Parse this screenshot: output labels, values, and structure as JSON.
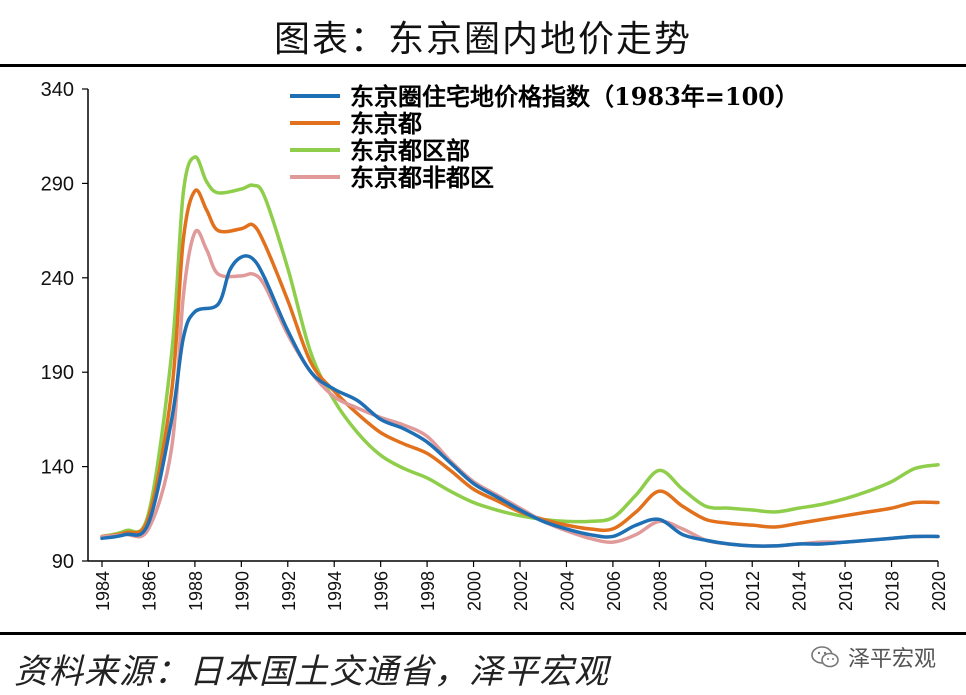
{
  "title": "图表：东京圈内地价走势",
  "source": "资料来源：日本国土交通省，泽平宏观",
  "watermark": {
    "text": "泽平宏观",
    "icon": "wechat-icon"
  },
  "chart_data": {
    "type": "line",
    "title": "图表：东京圈内地价走势",
    "xlabel": "",
    "ylabel": "",
    "ylim": [
      90,
      340
    ],
    "yticks": [
      90,
      140,
      190,
      240,
      290,
      340
    ],
    "xlim": [
      1984,
      2020
    ],
    "xticks": [
      1984,
      1986,
      1988,
      1990,
      1992,
      1994,
      1996,
      1998,
      2000,
      2002,
      2004,
      2006,
      2008,
      2010,
      2012,
      2014,
      2016,
      2018,
      2020
    ],
    "grid": false,
    "legend_position": "top-center",
    "series": [
      {
        "name": "东京圈住宅地价格指数（1983年=100）",
        "color": "#1f6fb5",
        "points": [
          [
            1984,
            102
          ],
          [
            1985,
            104
          ],
          [
            1986,
            110
          ],
          [
            1987,
            165
          ],
          [
            1987.5,
            208
          ],
          [
            1988,
            222
          ],
          [
            1989,
            226
          ],
          [
            1989.5,
            244
          ],
          [
            1990,
            251
          ],
          [
            1990.5,
            250
          ],
          [
            1991,
            240
          ],
          [
            1992,
            212
          ],
          [
            1993,
            190
          ],
          [
            1994,
            181
          ],
          [
            1995,
            175
          ],
          [
            1996,
            165
          ],
          [
            1997,
            160
          ],
          [
            1998,
            153
          ],
          [
            1999,
            142
          ],
          [
            2000,
            131
          ],
          [
            2001,
            124
          ],
          [
            2002,
            117
          ],
          [
            2003,
            111
          ],
          [
            2004,
            107
          ],
          [
            2005,
            104
          ],
          [
            2006,
            103
          ],
          [
            2007,
            109
          ],
          [
            2008,
            112
          ],
          [
            2009,
            104
          ],
          [
            2010,
            101
          ],
          [
            2011,
            99
          ],
          [
            2012,
            98
          ],
          [
            2013,
            98
          ],
          [
            2014,
            99
          ],
          [
            2015,
            99
          ],
          [
            2016,
            100
          ],
          [
            2017,
            101
          ],
          [
            2018,
            102
          ],
          [
            2019,
            103
          ],
          [
            2020,
            103
          ]
        ]
      },
      {
        "name": "东京都",
        "color": "#e2711d",
        "points": [
          [
            1984,
            103
          ],
          [
            1985,
            105
          ],
          [
            1986,
            113
          ],
          [
            1987,
            180
          ],
          [
            1987.5,
            260
          ],
          [
            1988,
            286
          ],
          [
            1988.5,
            276
          ],
          [
            1989,
            265
          ],
          [
            1990,
            266
          ],
          [
            1990.5,
            268
          ],
          [
            1991,
            258
          ],
          [
            1992,
            228
          ],
          [
            1993,
            195
          ],
          [
            1994,
            180
          ],
          [
            1995,
            168
          ],
          [
            1996,
            158
          ],
          [
            1997,
            152
          ],
          [
            1998,
            147
          ],
          [
            1999,
            138
          ],
          [
            2000,
            128
          ],
          [
            2001,
            122
          ],
          [
            2002,
            116
          ],
          [
            2003,
            112
          ],
          [
            2004,
            109
          ],
          [
            2005,
            107
          ],
          [
            2006,
            107
          ],
          [
            2007,
            116
          ],
          [
            2008,
            127
          ],
          [
            2009,
            119
          ],
          [
            2010,
            112
          ],
          [
            2011,
            110
          ],
          [
            2012,
            109
          ],
          [
            2013,
            108
          ],
          [
            2014,
            110
          ],
          [
            2015,
            112
          ],
          [
            2016,
            114
          ],
          [
            2017,
            116
          ],
          [
            2018,
            118
          ],
          [
            2019,
            121
          ],
          [
            2020,
            121
          ]
        ]
      },
      {
        "name": "东京都区部",
        "color": "#8fce4a",
        "points": [
          [
            1984,
            103
          ],
          [
            1985,
            106
          ],
          [
            1986,
            115
          ],
          [
            1987,
            200
          ],
          [
            1987.5,
            285
          ],
          [
            1988,
            304
          ],
          [
            1988.5,
            291
          ],
          [
            1989,
            285
          ],
          [
            1990,
            287
          ],
          [
            1990.5,
            289
          ],
          [
            1991,
            283
          ],
          [
            1992,
            245
          ],
          [
            1993,
            200
          ],
          [
            1994,
            175
          ],
          [
            1995,
            158
          ],
          [
            1996,
            146
          ],
          [
            1997,
            139
          ],
          [
            1998,
            134
          ],
          [
            1999,
            127
          ],
          [
            2000,
            121
          ],
          [
            2001,
            117
          ],
          [
            2002,
            114
          ],
          [
            2003,
            112
          ],
          [
            2004,
            111
          ],
          [
            2005,
            111
          ],
          [
            2006,
            113
          ],
          [
            2007,
            125
          ],
          [
            2008,
            138
          ],
          [
            2009,
            128
          ],
          [
            2010,
            119
          ],
          [
            2011,
            118
          ],
          [
            2012,
            117
          ],
          [
            2013,
            116
          ],
          [
            2014,
            118
          ],
          [
            2015,
            120
          ],
          [
            2016,
            123
          ],
          [
            2017,
            127
          ],
          [
            2018,
            132
          ],
          [
            2019,
            139
          ],
          [
            2020,
            141
          ]
        ]
      },
      {
        "name": "东京都非都区",
        "color": "#e09a9a",
        "points": [
          [
            1984,
            103
          ],
          [
            1985,
            104
          ],
          [
            1986,
            107
          ],
          [
            1987,
            150
          ],
          [
            1987.5,
            230
          ],
          [
            1988,
            264
          ],
          [
            1988.5,
            255
          ],
          [
            1989,
            242
          ],
          [
            1990,
            241
          ],
          [
            1990.5,
            242
          ],
          [
            1991,
            236
          ],
          [
            1992,
            210
          ],
          [
            1993,
            190
          ],
          [
            1994,
            177
          ],
          [
            1995,
            171
          ],
          [
            1996,
            166
          ],
          [
            1997,
            162
          ],
          [
            1998,
            156
          ],
          [
            1999,
            143
          ],
          [
            2000,
            132
          ],
          [
            2001,
            125
          ],
          [
            2002,
            118
          ],
          [
            2003,
            111
          ],
          [
            2004,
            106
          ],
          [
            2005,
            102
          ],
          [
            2006,
            100
          ],
          [
            2007,
            104
          ],
          [
            2008,
            111
          ],
          [
            2009,
            107
          ],
          [
            2010,
            101
          ],
          [
            2011,
            99
          ],
          [
            2012,
            98
          ],
          [
            2013,
            98
          ],
          [
            2014,
            99
          ],
          [
            2015,
            100
          ],
          [
            2016,
            100
          ],
          [
            2017,
            101
          ],
          [
            2018,
            102
          ],
          [
            2019,
            103
          ],
          [
            2020,
            103
          ]
        ]
      }
    ]
  }
}
